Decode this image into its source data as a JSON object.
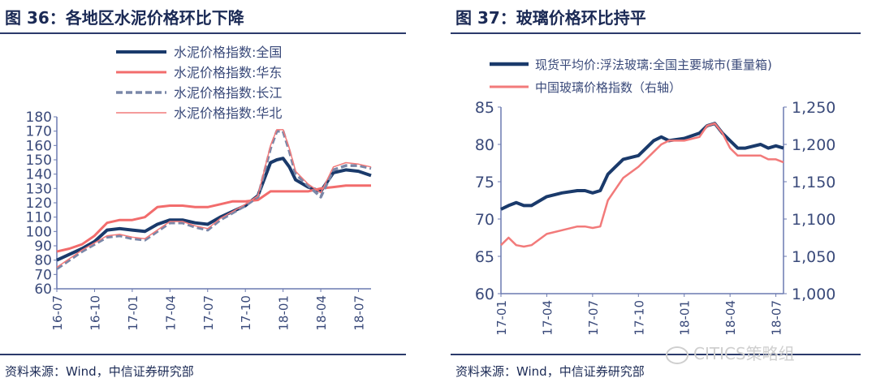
{
  "left": {
    "title": "图 36：各地区水泥价格环比下降",
    "source": "资料来源：Wind，中信证券研究部",
    "chart_data": {
      "type": "line",
      "title": "图 36：各地区水泥价格环比下降",
      "xlabel": "",
      "ylabel": "",
      "ylim": [
        60,
        180
      ],
      "yticks": [
        60,
        70,
        80,
        90,
        100,
        110,
        120,
        130,
        140,
        150,
        160,
        170,
        180
      ],
      "xlim": [
        0,
        25
      ],
      "xticks": [
        {
          "x": 0,
          "label": "16-07"
        },
        {
          "x": 3,
          "label": "16-10"
        },
        {
          "x": 6,
          "label": "17-01"
        },
        {
          "x": 9,
          "label": "17-04"
        },
        {
          "x": 12,
          "label": "17-07"
        },
        {
          "x": 15,
          "label": "17-10"
        },
        {
          "x": 18,
          "label": "18-01"
        },
        {
          "x": 21,
          "label": "18-04"
        },
        {
          "x": 24,
          "label": "18-07"
        }
      ],
      "legend_position": "top",
      "grid": false,
      "series": [
        {
          "name": "水泥价格指数:全国",
          "color": "#1a3a6b",
          "width": 4,
          "dash": "",
          "x": [
            0,
            1,
            2,
            3,
            4,
            5,
            6,
            7,
            8,
            9,
            10,
            11,
            12,
            13,
            14,
            15,
            16,
            17,
            17.5,
            18,
            18.5,
            19,
            20,
            21,
            22,
            23,
            24,
            25
          ],
          "y": [
            80,
            84,
            88,
            93,
            101,
            102,
            101,
            100,
            105,
            108,
            108,
            106,
            105,
            110,
            114,
            118,
            125,
            148,
            150,
            151,
            145,
            136,
            131,
            128,
            141,
            143,
            142,
            139
          ]
        },
        {
          "name": "水泥价格指数:华东",
          "color": "#f26c6c",
          "width": 3,
          "dash": "",
          "x": [
            0,
            1,
            2,
            3,
            4,
            5,
            6,
            7,
            8,
            9,
            10,
            11,
            12,
            13,
            14,
            15,
            16,
            17,
            18,
            19,
            20,
            21,
            22,
            23,
            24,
            25
          ],
          "y": [
            86,
            88,
            91,
            97,
            106,
            108,
            108,
            110,
            117,
            118,
            118,
            117,
            117,
            119,
            121,
            121,
            122,
            128,
            128,
            128,
            128,
            130,
            131,
            132,
            132,
            132
          ]
        },
        {
          "name": "水泥价格指数:长江",
          "color": "#7a87a8",
          "width": 3.5,
          "dash": "8,4",
          "x": [
            0,
            1,
            2,
            3,
            4,
            5,
            6,
            7,
            8,
            9,
            10,
            11,
            12,
            13,
            14,
            15,
            16,
            17,
            17.5,
            18,
            18.5,
            19,
            20,
            21,
            22,
            23,
            24,
            25
          ],
          "y": [
            74,
            80,
            86,
            91,
            96,
            97,
            95,
            94,
            100,
            106,
            106,
            103,
            101,
            108,
            113,
            118,
            124,
            158,
            170,
            170,
            156,
            140,
            132,
            124,
            143,
            146,
            146,
            144
          ]
        },
        {
          "name": "水泥价格指数:华北",
          "color": "#f27a7a",
          "width": 1.5,
          "dash": "",
          "x": [
            0,
            1,
            2,
            3,
            4,
            5,
            6,
            7,
            8,
            9,
            10,
            11,
            12,
            13,
            14,
            15,
            16,
            17,
            17.5,
            18,
            18.5,
            19,
            20,
            21,
            22,
            23,
            24,
            25
          ],
          "y": [
            75,
            81,
            87,
            92,
            97,
            98,
            96,
            95,
            101,
            107,
            107,
            104,
            102,
            109,
            114,
            119,
            125,
            160,
            171,
            171,
            158,
            142,
            133,
            127,
            145,
            148,
            147,
            145
          ]
        }
      ]
    }
  },
  "right": {
    "title": "图 37：玻璃价格环比持平",
    "source": "资料来源：Wind，中信证券研究部",
    "chart_data": {
      "type": "line",
      "title": "图 37：玻璃价格环比持平",
      "xlabel": "",
      "ylabel": "",
      "ylim": [
        60,
        85
      ],
      "yticks": [
        60,
        65,
        70,
        75,
        80,
        85
      ],
      "y2lim": [
        1000,
        1250
      ],
      "y2ticks": [
        {
          "value": 1000,
          "label": "1,000"
        },
        {
          "value": 1050,
          "label": "1,050"
        },
        {
          "value": 1100,
          "label": "1,100"
        },
        {
          "value": 1150,
          "label": "1,150"
        },
        {
          "value": 1200,
          "label": "1,200"
        },
        {
          "value": 1250,
          "label": "1,250"
        }
      ],
      "xlim": [
        0,
        18.5
      ],
      "xticks": [
        {
          "x": 0,
          "label": "17-01"
        },
        {
          "x": 3,
          "label": "17-04"
        },
        {
          "x": 6,
          "label": "17-07"
        },
        {
          "x": 9,
          "label": "17-10"
        },
        {
          "x": 12,
          "label": "18-01"
        },
        {
          "x": 15,
          "label": "18-04"
        },
        {
          "x": 18,
          "label": "18-07"
        }
      ],
      "legend_position": "top",
      "grid": false,
      "series": [
        {
          "name": "现货平均价:浮法玻璃:全国主要城市(重量箱)",
          "axis": "left",
          "color": "#1a3a6b",
          "width": 4,
          "x": [
            0,
            0.5,
            1,
            1.5,
            2,
            3,
            4,
            5,
            5.5,
            6,
            6.5,
            7,
            7.5,
            8,
            9,
            10,
            10.5,
            11,
            12,
            13,
            13.5,
            14,
            14.5,
            15,
            15.5,
            16,
            17,
            17.5,
            18,
            18.5
          ],
          "y": [
            71.3,
            71.8,
            72.2,
            71.8,
            71.8,
            73,
            73.5,
            73.8,
            73.8,
            73.5,
            73.8,
            76,
            77,
            78,
            78.5,
            80.5,
            81,
            80.5,
            80.8,
            81.5,
            82.5,
            82.8,
            81.5,
            80.5,
            79.5,
            79.5,
            80,
            79.5,
            79.8,
            79.5
          ]
        },
        {
          "name": "中国玻璃价格指数（右轴）",
          "axis": "right",
          "color": "#f27a7a",
          "width": 2.5,
          "x": [
            0,
            0.5,
            1,
            1.5,
            2,
            3,
            4,
            5,
            5.5,
            6,
            6.5,
            7,
            7.5,
            8,
            9,
            10,
            10.5,
            11,
            12,
            13,
            13.5,
            14,
            14.5,
            15,
            15.5,
            16,
            17,
            17.5,
            18,
            18.5
          ],
          "y": [
            1065,
            1075,
            1065,
            1063,
            1065,
            1080,
            1085,
            1090,
            1090,
            1088,
            1090,
            1125,
            1140,
            1155,
            1170,
            1190,
            1200,
            1205,
            1205,
            1210,
            1225,
            1228,
            1215,
            1195,
            1185,
            1185,
            1185,
            1180,
            1180,
            1176
          ]
        }
      ]
    }
  },
  "watermark": {
    "text": "CITICS策略组",
    "icon": "wechat-icon"
  },
  "colors": {
    "navy": "#1a3a6b",
    "red": "#f26c6c",
    "text": "#1b2a55",
    "rule": "#2b3a6b"
  }
}
